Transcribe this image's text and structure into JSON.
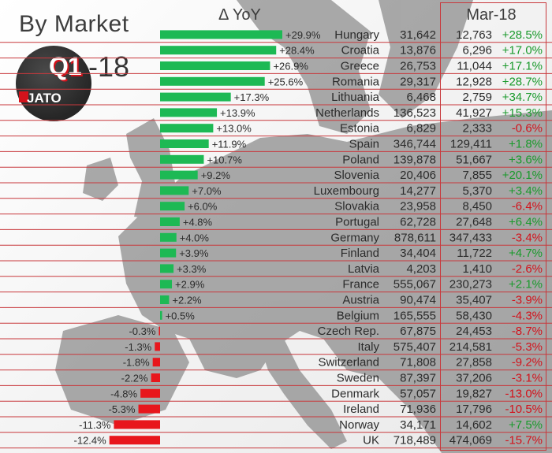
{
  "header": {
    "title": "By Market",
    "yoy_label": "Δ YoY",
    "month_label": "Mar-18"
  },
  "badge": {
    "quarter": "Q1",
    "year_suffix": "-18",
    "brand": "JATO"
  },
  "colors": {
    "positive_bar": "#1db954",
    "negative_bar": "#e8161c",
    "positive_text": "#1a9a2c",
    "negative_text": "#d3121b",
    "row_line": "#c8383c",
    "text": "#2b2b2b"
  },
  "chart_data": {
    "type": "bar",
    "title": "By Market",
    "subtitle": "Q1-18",
    "orientation": "horizontal",
    "series": [
      {
        "name": "Δ YoY (%)",
        "values": [
          29.9,
          28.4,
          26.9,
          25.6,
          17.3,
          13.9,
          13.0,
          11.9,
          10.7,
          9.2,
          7.0,
          6.0,
          4.8,
          4.0,
          3.9,
          3.3,
          2.9,
          2.2,
          0.5,
          -0.3,
          -1.3,
          -1.8,
          -2.2,
          -4.8,
          -5.3,
          -11.3,
          -12.4
        ]
      }
    ],
    "xlim": [
      -12.4,
      29.9
    ],
    "rows": [
      {
        "label": "+29.9%",
        "market": "Hungary",
        "q1": "31,642",
        "mar": "12,763",
        "mar_chg": "+28.5%"
      },
      {
        "label": "+28.4%",
        "market": "Croatia",
        "q1": "13,876",
        "mar": "6,296",
        "mar_chg": "+17.0%"
      },
      {
        "label": "+26.9%",
        "market": "Greece",
        "q1": "26,753",
        "mar": "11,044",
        "mar_chg": "+17.1%"
      },
      {
        "label": "+25.6%",
        "market": "Romania",
        "q1": "29,317",
        "mar": "12,928",
        "mar_chg": "+28.7%"
      },
      {
        "label": "+17.3%",
        "market": "Lithuania",
        "q1": "6,468",
        "mar": "2,759",
        "mar_chg": "+34.7%"
      },
      {
        "label": "+13.9%",
        "market": "Netherlands",
        "q1": "136,523",
        "mar": "41,927",
        "mar_chg": "+15.3%"
      },
      {
        "label": "+13.0%",
        "market": "Estonia",
        "q1": "6,829",
        "mar": "2,333",
        "mar_chg": "-0.6%"
      },
      {
        "label": "+11.9%",
        "market": "Spain",
        "q1": "346,744",
        "mar": "129,411",
        "mar_chg": "+1.8%"
      },
      {
        "label": "+10.7%",
        "market": "Poland",
        "q1": "139,878",
        "mar": "51,667",
        "mar_chg": "+3.6%"
      },
      {
        "label": "+9.2%",
        "market": "Slovenia",
        "q1": "20,406",
        "mar": "7,855",
        "mar_chg": "+20.1%"
      },
      {
        "label": "+7.0%",
        "market": "Luxembourg",
        "q1": "14,277",
        "mar": "5,370",
        "mar_chg": "+3.4%"
      },
      {
        "label": "+6.0%",
        "market": "Slovakia",
        "q1": "23,958",
        "mar": "8,450",
        "mar_chg": "-6.4%"
      },
      {
        "label": "+4.8%",
        "market": "Portugal",
        "q1": "62,728",
        "mar": "27,648",
        "mar_chg": "+6.4%"
      },
      {
        "label": "+4.0%",
        "market": "Germany",
        "q1": "878,611",
        "mar": "347,433",
        "mar_chg": "-3.4%"
      },
      {
        "label": "+3.9%",
        "market": "Finland",
        "q1": "34,404",
        "mar": "11,722",
        "mar_chg": "+4.7%"
      },
      {
        "label": "+3.3%",
        "market": "Latvia",
        "q1": "4,203",
        "mar": "1,410",
        "mar_chg": "-2.6%"
      },
      {
        "label": "+2.9%",
        "market": "France",
        "q1": "555,067",
        "mar": "230,273",
        "mar_chg": "+2.1%"
      },
      {
        "label": "+2.2%",
        "market": "Austria",
        "q1": "90,474",
        "mar": "35,407",
        "mar_chg": "-3.9%"
      },
      {
        "label": "+0.5%",
        "market": "Belgium",
        "q1": "165,555",
        "mar": "58,430",
        "mar_chg": "-4.3%"
      },
      {
        "label": "-0.3%",
        "market": "Czech Rep.",
        "q1": "67,875",
        "mar": "24,453",
        "mar_chg": "-8.7%"
      },
      {
        "label": "-1.3%",
        "market": "Italy",
        "q1": "575,407",
        "mar": "214,581",
        "mar_chg": "-5.3%"
      },
      {
        "label": "-1.8%",
        "market": "Switzerland",
        "q1": "71,808",
        "mar": "27,858",
        "mar_chg": "-9.2%"
      },
      {
        "label": "-2.2%",
        "market": "Sweden",
        "q1": "87,397",
        "mar": "37,206",
        "mar_chg": "-3.1%"
      },
      {
        "label": "-4.8%",
        "market": "Denmark",
        "q1": "57,057",
        "mar": "19,827",
        "mar_chg": "-13.0%"
      },
      {
        "label": "-5.3%",
        "market": "Ireland",
        "q1": "71,936",
        "mar": "17,796",
        "mar_chg": "-10.5%"
      },
      {
        "label": "-11.3%",
        "market": "Norway",
        "q1": "34,171",
        "mar": "14,602",
        "mar_chg": "+7.5%"
      },
      {
        "label": "-12.4%",
        "market": "UK",
        "q1": "718,489",
        "mar": "474,069",
        "mar_chg": "-15.7%"
      }
    ]
  }
}
